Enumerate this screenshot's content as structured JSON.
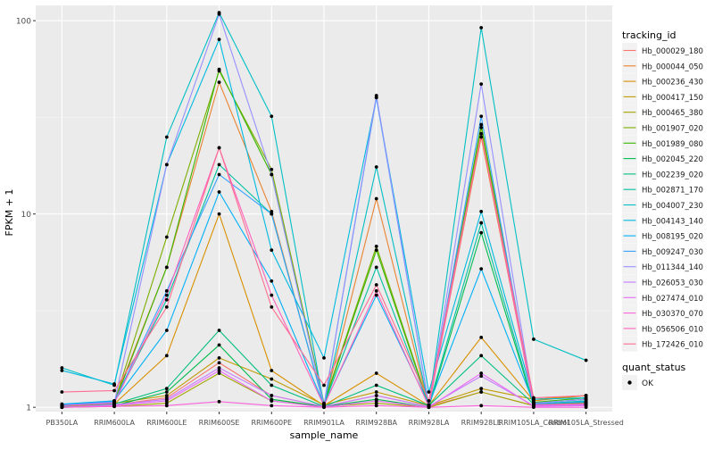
{
  "chart_data": {
    "type": "line",
    "xlabel": "sample_name",
    "ylabel": "FPKM + 1",
    "y_scale": "log10",
    "ylim": [
      0.95,
      120
    ],
    "yticks": [
      1,
      10,
      100
    ],
    "ytick_labels": [
      "1",
      "10",
      "100"
    ],
    "grid": true,
    "categories": [
      "PB350LA",
      "RRIM600LA",
      "RRIM600LE",
      "RRIM600SE",
      "RRIM600PE",
      "RRIM901LA",
      "RRIM928BA",
      "RRIM928LA",
      "RRIM928LE",
      "RRIM105LA_Control",
      "RRIM105LA_Stressed"
    ],
    "category_labels": [
      "PB350LA",
      "RRIM600LA",
      "RRIM600LE",
      "RRIM600SE",
      "RRIM600PE",
      "RRIM901LA",
      "RRIM928BA",
      "RRIM928LA",
      "RRIM928LE",
      "RRIM105LA_Control",
      "RRIM105LA_Stressed"
    ],
    "legend": {
      "title": "tracking_id",
      "position": "right",
      "shape_title": "quant_status",
      "shape_label": "OK"
    },
    "series": [
      {
        "name": "Hb_000029_180",
        "color": "#F8766D",
        "values": [
          1.02,
          1.03,
          1.12,
          1.7,
          1.15,
          1.01,
          1.15,
          1.01,
          1.2,
          1.02,
          1.05
        ]
      },
      {
        "name": "Hb_000044_050",
        "color": "#EA8331",
        "values": [
          1.03,
          1.08,
          5.3,
          48,
          10.3,
          1.02,
          12,
          1.01,
          25,
          1.03,
          1.06
        ]
      },
      {
        "name": "Hb_000236_430",
        "color": "#D89000",
        "values": [
          1.01,
          1.04,
          1.85,
          10,
          1.55,
          1.02,
          1.5,
          1.02,
          2.3,
          1.08,
          1.15
        ]
      },
      {
        "name": "Hb_000417_150",
        "color": "#C09B00",
        "values": [
          1.02,
          1.05,
          1.15,
          1.8,
          1.4,
          1.03,
          1.2,
          1.02,
          1.25,
          1.1,
          1.15
        ]
      },
      {
        "name": "Hb_000465_380",
        "color": "#A3A500",
        "values": [
          1.0,
          1.01,
          1.05,
          1.5,
          1.08,
          1.01,
          1.05,
          1.0,
          1.2,
          1.02,
          1.03
        ]
      },
      {
        "name": "Hb_001907_020",
        "color": "#7CAE00",
        "values": [
          1.02,
          1.06,
          7.6,
          55,
          17,
          1.05,
          6.8,
          1.03,
          28,
          1.05,
          1.1
        ]
      },
      {
        "name": "Hb_001989_080",
        "color": "#39B600",
        "values": [
          1.03,
          1.05,
          5.3,
          56,
          16,
          1.04,
          6.5,
          1.02,
          29,
          1.06,
          1.12
        ]
      },
      {
        "name": "Hb_002045_220",
        "color": "#00BB4E",
        "values": [
          1.0,
          1.02,
          1.2,
          2.1,
          1.1,
          1.01,
          1.1,
          1.0,
          8.0,
          1.02,
          1.04
        ]
      },
      {
        "name": "Hb_002239_020",
        "color": "#00BF7D",
        "values": [
          1.02,
          1.04,
          1.25,
          2.5,
          1.3,
          1.01,
          1.3,
          1.02,
          1.85,
          1.04,
          1.06
        ]
      },
      {
        "name": "Hb_002871_170",
        "color": "#00C1A3",
        "values": [
          1.01,
          1.07,
          3.6,
          18,
          10,
          1.03,
          5.3,
          1.02,
          9.0,
          1.04,
          1.08
        ]
      },
      {
        "name": "Hb_004007_230",
        "color": "#00BFC4",
        "values": [
          1.6,
          1.3,
          25,
          110,
          32,
          1.02,
          17.5,
          1.02,
          92,
          2.25,
          1.75
        ]
      },
      {
        "name": "Hb_004143_140",
        "color": "#00BAE0",
        "values": [
          1.55,
          1.32,
          18,
          80,
          6.5,
          1.8,
          40,
          1.2,
          10.3,
          1.1,
          1.12
        ]
      },
      {
        "name": "Hb_008195_020",
        "color": "#00B0F6",
        "values": [
          1.04,
          1.08,
          2.5,
          13,
          4.5,
          1.03,
          3.8,
          1.03,
          5.2,
          1.05,
          1.1
        ]
      },
      {
        "name": "Hb_009247_030",
        "color": "#35A2FF",
        "values": [
          1.03,
          1.07,
          4.0,
          16,
          10,
          1.03,
          40,
          1.03,
          32,
          1.04,
          1.07
        ]
      },
      {
        "name": "Hb_011344_140",
        "color": "#9590FF",
        "values": [
          1.02,
          1.06,
          18,
          108,
          16,
          1.02,
          41,
          1.02,
          47,
          1.05,
          1.1
        ]
      },
      {
        "name": "Hb_026053_030",
        "color": "#C77CFF",
        "values": [
          1.0,
          1.03,
          1.1,
          1.6,
          1.15,
          1.01,
          1.15,
          1.01,
          1.45,
          1.02,
          1.03
        ]
      },
      {
        "name": "Hb_027474_010",
        "color": "#E76BF3",
        "values": [
          1.0,
          1.02,
          1.08,
          1.55,
          1.08,
          1.0,
          1.08,
          1.0,
          1.5,
          1.01,
          1.02
        ]
      },
      {
        "name": "Hb_030370_070",
        "color": "#FA62DB",
        "values": [
          1.0,
          1.01,
          1.02,
          1.07,
          1.02,
          1.0,
          1.02,
          1.0,
          1.02,
          1.0,
          1.0
        ]
      },
      {
        "name": "Hb_056506_010",
        "color": "#FF62BC",
        "values": [
          1.02,
          1.05,
          3.8,
          22,
          3.8,
          1.02,
          4.0,
          1.01,
          26,
          1.03,
          1.04
        ]
      },
      {
        "name": "Hb_172426_010",
        "color": "#FF6C91",
        "values": [
          1.2,
          1.22,
          3.3,
          22,
          3.3,
          1.3,
          4.3,
          1.08,
          26,
          1.12,
          1.15
        ]
      }
    ]
  }
}
